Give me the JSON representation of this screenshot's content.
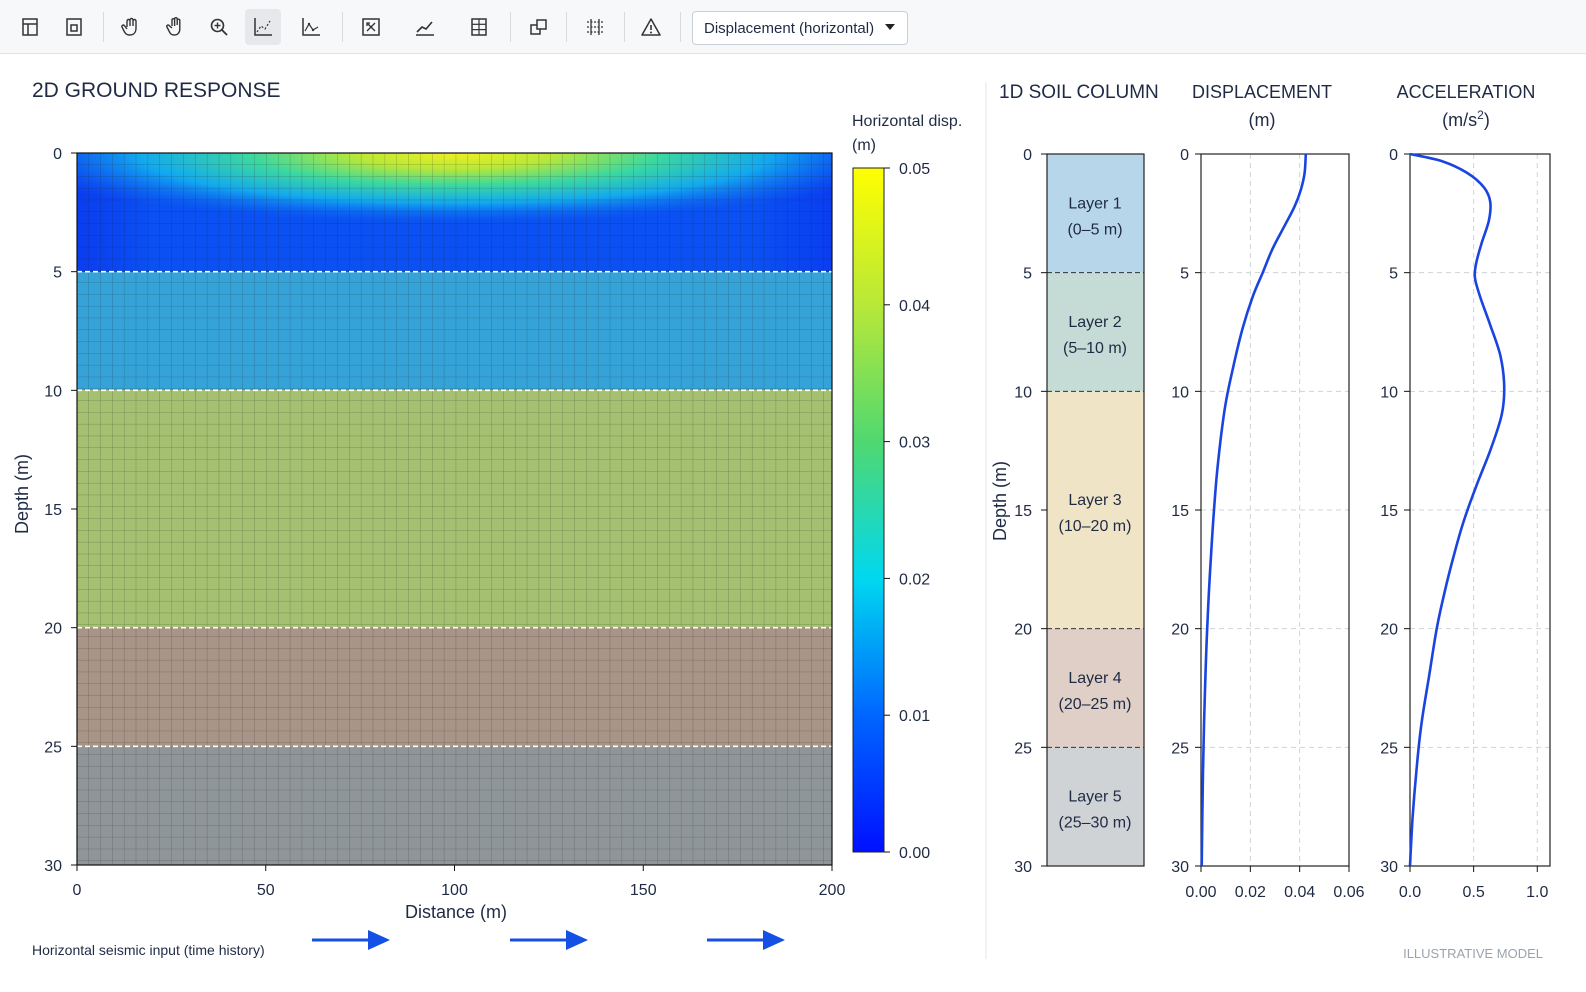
{
  "toolbar": {
    "buttons": [
      {
        "name": "new-model-icon"
      },
      {
        "name": "open-model-icon"
      },
      {
        "name": "pan-hand-icon"
      },
      {
        "name": "grab-hand-icon"
      },
      {
        "name": "zoom-in-icon"
      },
      {
        "name": "scatter-plot-icon",
        "active": true
      },
      {
        "name": "axes-plot-icon"
      },
      {
        "name": "fit-view-icon"
      },
      {
        "name": "line-chart-icon"
      },
      {
        "name": "mesh-grid-icon"
      },
      {
        "name": "copy-window-icon"
      },
      {
        "name": "layer-grid-icon"
      },
      {
        "name": "warning-triangle-icon"
      }
    ],
    "dropdown": {
      "selected": "Displacement (horizontal)"
    }
  },
  "left": {
    "title": "2D GROUND RESPONSE",
    "chart_data": {
      "type": "heatmap",
      "title": "2D GROUND RESPONSE",
      "xlabel": "Distance (m)",
      "ylabel": "Depth (m)",
      "xlim": [
        0,
        200
      ],
      "ylim": [
        0,
        30
      ],
      "xticks": [
        0,
        50,
        100,
        150,
        200
      ],
      "yticks": [
        0,
        5,
        10,
        15,
        20,
        25,
        30
      ],
      "layer_boundaries": [
        5,
        10,
        20,
        25
      ],
      "colorbar": {
        "label": [
          "Horizontal disp.",
          "(m)"
        ],
        "min": 0.0,
        "max": 0.05,
        "ticks": [
          "0.00",
          "0.01",
          "0.02",
          "0.03",
          "0.04",
          "0.05"
        ]
      },
      "grid": true
    },
    "xtick_labels": [
      "0",
      "50",
      "100",
      "150",
      "200"
    ],
    "ytick_labels": [
      "0",
      "5",
      "10",
      "15",
      "20",
      "25",
      "30"
    ],
    "seismic_label": "Horizontal seismic input (time history)"
  },
  "right": {
    "column_title": "1D SOIL COLUMN",
    "column_ylabel": "Depth (m)",
    "depth_ticks": [
      "0",
      "5",
      "10",
      "15",
      "20",
      "25",
      "30"
    ],
    "layers": [
      {
        "name": "Layer 1",
        "range": "(0–5 m)",
        "top": 0,
        "bottom": 5,
        "color": "#b8d6ea"
      },
      {
        "name": "Layer 2",
        "range": "(5–10 m)",
        "top": 5,
        "bottom": 10,
        "color": "#c5dbd5"
      },
      {
        "name": "Layer 3",
        "range": "(10–20 m)",
        "top": 10,
        "bottom": 20,
        "color": "#efe4c6"
      },
      {
        "name": "Layer 4",
        "range": "(20–25 m)",
        "top": 20,
        "bottom": 25,
        "color": "#dfcfc6"
      },
      {
        "name": "Layer 5",
        "range": "(25–30 m)",
        "top": 25,
        "bottom": 30,
        "color": "#cfd3d6"
      }
    ],
    "displacement": {
      "title": [
        "DISPLACEMENT",
        "(m)"
      ],
      "xtick_labels": [
        "0.00",
        "0.02",
        "0.04",
        "0.06"
      ],
      "ytick_labels": [
        "0",
        "5",
        "10",
        "15",
        "20",
        "25",
        "30"
      ],
      "chart_data": {
        "type": "line",
        "title": "DISPLACEMENT (m)",
        "xlim": [
          0,
          0.06
        ],
        "ylim": [
          0,
          30
        ],
        "grid": true,
        "series": [
          {
            "points": [
              [
                0.0425,
                0
              ],
              [
                0.042,
                0.8
              ],
              [
                0.0405,
                1.5
              ],
              [
                0.038,
                2.2
              ],
              [
                0.034,
                3
              ],
              [
                0.029,
                4
              ],
              [
                0.025,
                5
              ],
              [
                0.021,
                6
              ],
              [
                0.017,
                7.3
              ],
              [
                0.013,
                9
              ],
              [
                0.01,
                10.5
              ],
              [
                0.008,
                12
              ],
              [
                0.006,
                14
              ],
              [
                0.004,
                17
              ],
              [
                0.0025,
                20
              ],
              [
                0.0015,
                23
              ],
              [
                0.0008,
                26
              ],
              [
                0.0003,
                30
              ]
            ]
          }
        ]
      }
    },
    "acceleration": {
      "title": [
        "ACCELERATION",
        "(m/s",
        "2",
        ")"
      ],
      "xtick_labels": [
        "0.0",
        "0.5",
        "1.0"
      ],
      "ytick_labels": [
        "0",
        "5",
        "10",
        "15",
        "20",
        "25",
        "30"
      ],
      "chart_data": {
        "type": "line",
        "title": "ACCELERATION (m/s2)",
        "xlim": [
          0,
          1.1
        ],
        "ylim": [
          0,
          30
        ],
        "grid": true,
        "series": [
          {
            "points": [
              [
                0.0,
                0
              ],
              [
                0.25,
                0.3
              ],
              [
                0.45,
                0.8
              ],
              [
                0.58,
                1.4
              ],
              [
                0.63,
                2.0
              ],
              [
                0.62,
                2.8
              ],
              [
                0.56,
                3.8
              ],
              [
                0.52,
                4.6
              ],
              [
                0.51,
                5.2
              ],
              [
                0.55,
                6.0
              ],
              [
                0.63,
                7.2
              ],
              [
                0.71,
                8.5
              ],
              [
                0.74,
                9.8
              ],
              [
                0.72,
                11
              ],
              [
                0.63,
                12.5
              ],
              [
                0.52,
                14
              ],
              [
                0.42,
                15.5
              ],
              [
                0.34,
                17
              ],
              [
                0.27,
                18.5
              ],
              [
                0.21,
                20
              ],
              [
                0.15,
                22
              ],
              [
                0.09,
                24
              ],
              [
                0.05,
                26
              ],
              [
                0.02,
                28
              ],
              [
                0.0,
                30
              ]
            ]
          }
        ]
      }
    }
  },
  "footer_note": "ILLUSTRATIVE MODEL"
}
